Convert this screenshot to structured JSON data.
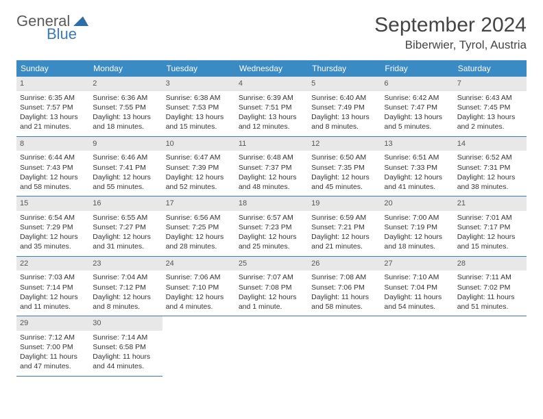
{
  "logo": {
    "general": "General",
    "blue": "Blue"
  },
  "title": "September 2024",
  "location": "Biberwier, Tyrol, Austria",
  "headers": [
    "Sunday",
    "Monday",
    "Tuesday",
    "Wednesday",
    "Thursday",
    "Friday",
    "Saturday"
  ],
  "colors": {
    "header_bg": "#3a8ac4",
    "header_text": "#ffffff",
    "daynum_bg": "#e8e8e8",
    "border": "#3a7ab8",
    "logo_blue": "#3a7ab8",
    "logo_gray": "#5a5a5a"
  },
  "days": [
    {
      "n": "1",
      "sunrise": "Sunrise: 6:35 AM",
      "sunset": "Sunset: 7:57 PM",
      "daylight": "Daylight: 13 hours and 21 minutes."
    },
    {
      "n": "2",
      "sunrise": "Sunrise: 6:36 AM",
      "sunset": "Sunset: 7:55 PM",
      "daylight": "Daylight: 13 hours and 18 minutes."
    },
    {
      "n": "3",
      "sunrise": "Sunrise: 6:38 AM",
      "sunset": "Sunset: 7:53 PM",
      "daylight": "Daylight: 13 hours and 15 minutes."
    },
    {
      "n": "4",
      "sunrise": "Sunrise: 6:39 AM",
      "sunset": "Sunset: 7:51 PM",
      "daylight": "Daylight: 13 hours and 12 minutes."
    },
    {
      "n": "5",
      "sunrise": "Sunrise: 6:40 AM",
      "sunset": "Sunset: 7:49 PM",
      "daylight": "Daylight: 13 hours and 8 minutes."
    },
    {
      "n": "6",
      "sunrise": "Sunrise: 6:42 AM",
      "sunset": "Sunset: 7:47 PM",
      "daylight": "Daylight: 13 hours and 5 minutes."
    },
    {
      "n": "7",
      "sunrise": "Sunrise: 6:43 AM",
      "sunset": "Sunset: 7:45 PM",
      "daylight": "Daylight: 13 hours and 2 minutes."
    },
    {
      "n": "8",
      "sunrise": "Sunrise: 6:44 AM",
      "sunset": "Sunset: 7:43 PM",
      "daylight": "Daylight: 12 hours and 58 minutes."
    },
    {
      "n": "9",
      "sunrise": "Sunrise: 6:46 AM",
      "sunset": "Sunset: 7:41 PM",
      "daylight": "Daylight: 12 hours and 55 minutes."
    },
    {
      "n": "10",
      "sunrise": "Sunrise: 6:47 AM",
      "sunset": "Sunset: 7:39 PM",
      "daylight": "Daylight: 12 hours and 52 minutes."
    },
    {
      "n": "11",
      "sunrise": "Sunrise: 6:48 AM",
      "sunset": "Sunset: 7:37 PM",
      "daylight": "Daylight: 12 hours and 48 minutes."
    },
    {
      "n": "12",
      "sunrise": "Sunrise: 6:50 AM",
      "sunset": "Sunset: 7:35 PM",
      "daylight": "Daylight: 12 hours and 45 minutes."
    },
    {
      "n": "13",
      "sunrise": "Sunrise: 6:51 AM",
      "sunset": "Sunset: 7:33 PM",
      "daylight": "Daylight: 12 hours and 41 minutes."
    },
    {
      "n": "14",
      "sunrise": "Sunrise: 6:52 AM",
      "sunset": "Sunset: 7:31 PM",
      "daylight": "Daylight: 12 hours and 38 minutes."
    },
    {
      "n": "15",
      "sunrise": "Sunrise: 6:54 AM",
      "sunset": "Sunset: 7:29 PM",
      "daylight": "Daylight: 12 hours and 35 minutes."
    },
    {
      "n": "16",
      "sunrise": "Sunrise: 6:55 AM",
      "sunset": "Sunset: 7:27 PM",
      "daylight": "Daylight: 12 hours and 31 minutes."
    },
    {
      "n": "17",
      "sunrise": "Sunrise: 6:56 AM",
      "sunset": "Sunset: 7:25 PM",
      "daylight": "Daylight: 12 hours and 28 minutes."
    },
    {
      "n": "18",
      "sunrise": "Sunrise: 6:57 AM",
      "sunset": "Sunset: 7:23 PM",
      "daylight": "Daylight: 12 hours and 25 minutes."
    },
    {
      "n": "19",
      "sunrise": "Sunrise: 6:59 AM",
      "sunset": "Sunset: 7:21 PM",
      "daylight": "Daylight: 12 hours and 21 minutes."
    },
    {
      "n": "20",
      "sunrise": "Sunrise: 7:00 AM",
      "sunset": "Sunset: 7:19 PM",
      "daylight": "Daylight: 12 hours and 18 minutes."
    },
    {
      "n": "21",
      "sunrise": "Sunrise: 7:01 AM",
      "sunset": "Sunset: 7:17 PM",
      "daylight": "Daylight: 12 hours and 15 minutes."
    },
    {
      "n": "22",
      "sunrise": "Sunrise: 7:03 AM",
      "sunset": "Sunset: 7:14 PM",
      "daylight": "Daylight: 12 hours and 11 minutes."
    },
    {
      "n": "23",
      "sunrise": "Sunrise: 7:04 AM",
      "sunset": "Sunset: 7:12 PM",
      "daylight": "Daylight: 12 hours and 8 minutes."
    },
    {
      "n": "24",
      "sunrise": "Sunrise: 7:06 AM",
      "sunset": "Sunset: 7:10 PM",
      "daylight": "Daylight: 12 hours and 4 minutes."
    },
    {
      "n": "25",
      "sunrise": "Sunrise: 7:07 AM",
      "sunset": "Sunset: 7:08 PM",
      "daylight": "Daylight: 12 hours and 1 minute."
    },
    {
      "n": "26",
      "sunrise": "Sunrise: 7:08 AM",
      "sunset": "Sunset: 7:06 PM",
      "daylight": "Daylight: 11 hours and 58 minutes."
    },
    {
      "n": "27",
      "sunrise": "Sunrise: 7:10 AM",
      "sunset": "Sunset: 7:04 PM",
      "daylight": "Daylight: 11 hours and 54 minutes."
    },
    {
      "n": "28",
      "sunrise": "Sunrise: 7:11 AM",
      "sunset": "Sunset: 7:02 PM",
      "daylight": "Daylight: 11 hours and 51 minutes."
    },
    {
      "n": "29",
      "sunrise": "Sunrise: 7:12 AM",
      "sunset": "Sunset: 7:00 PM",
      "daylight": "Daylight: 11 hours and 47 minutes."
    },
    {
      "n": "30",
      "sunrise": "Sunrise: 7:14 AM",
      "sunset": "Sunset: 6:58 PM",
      "daylight": "Daylight: 11 hours and 44 minutes."
    }
  ]
}
